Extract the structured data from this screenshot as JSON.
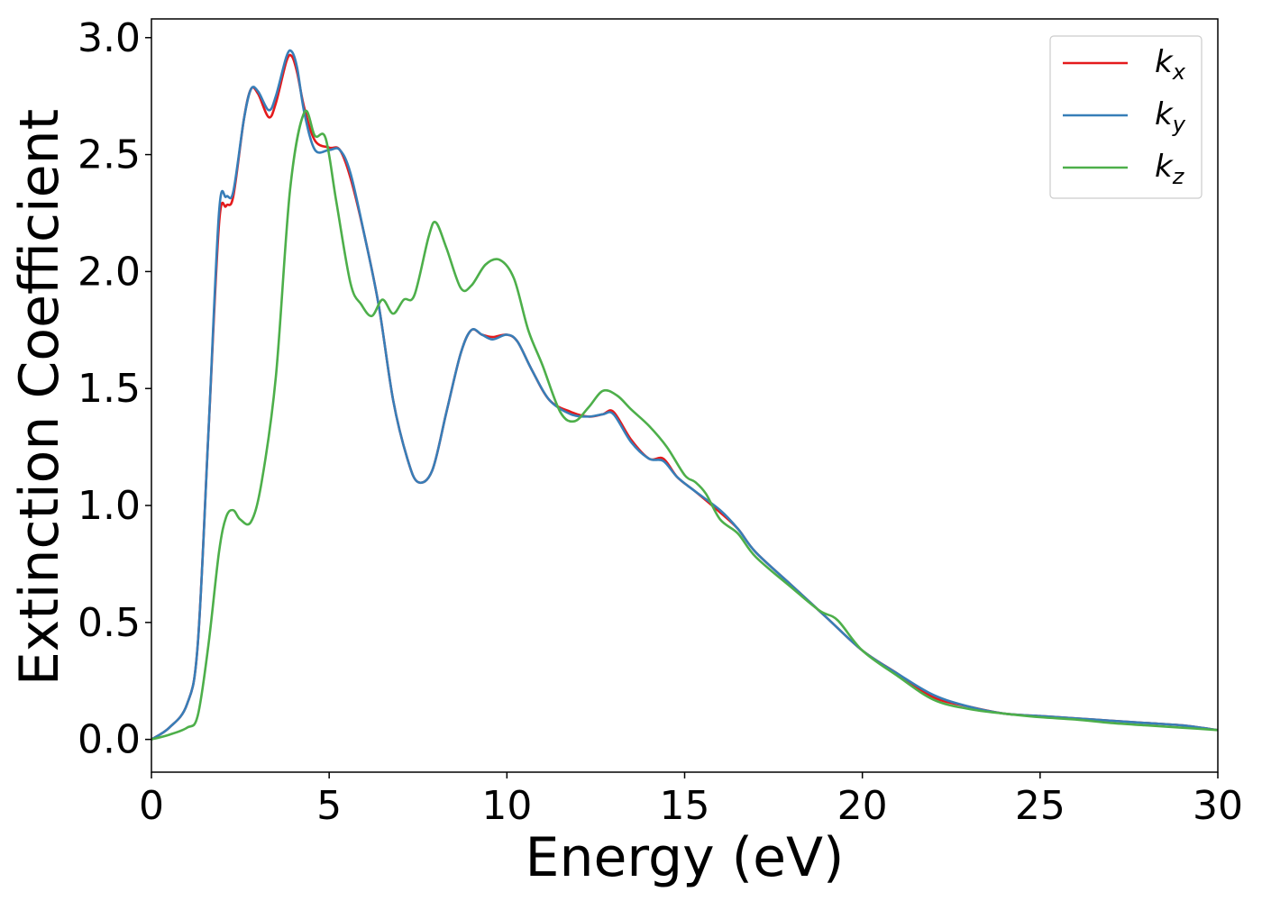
{
  "chart_data": {
    "type": "line",
    "title": "",
    "xlabel": "Energy (eV)",
    "ylabel": "Extinction Coefficient",
    "xlim": [
      0,
      30
    ],
    "ylim": [
      -0.14,
      3.08
    ],
    "xticks": [
      0,
      5,
      10,
      15,
      20,
      25,
      30
    ],
    "xtick_labels": [
      "0",
      "5",
      "10",
      "15",
      "20",
      "25",
      "30"
    ],
    "yticks": [
      0.0,
      0.5,
      1.0,
      1.5,
      2.0,
      2.5,
      3.0
    ],
    "ytick_labels": [
      "0.0",
      "0.5",
      "1.0",
      "1.5",
      "2.0",
      "2.5",
      "3.0"
    ],
    "grid": false,
    "legend_position": "top-right",
    "series": [
      {
        "name": "k_x",
        "label_main": "k",
        "label_sub": "x",
        "color": "#e41a1c",
        "points": [
          [
            0,
            0.0
          ],
          [
            0.5,
            0.05
          ],
          [
            1,
            0.15
          ],
          [
            1.3,
            0.4
          ],
          [
            1.6,
            1.3
          ],
          [
            1.9,
            2.2
          ],
          [
            2.1,
            2.28
          ],
          [
            2.3,
            2.32
          ],
          [
            2.6,
            2.65
          ],
          [
            2.8,
            2.78
          ],
          [
            3.0,
            2.76
          ],
          [
            3.3,
            2.66
          ],
          [
            3.5,
            2.72
          ],
          [
            3.8,
            2.9
          ],
          [
            3.95,
            2.92
          ],
          [
            4.1,
            2.85
          ],
          [
            4.3,
            2.7
          ],
          [
            4.6,
            2.56
          ],
          [
            5,
            2.53
          ],
          [
            5.3,
            2.52
          ],
          [
            5.6,
            2.4
          ],
          [
            6,
            2.15
          ],
          [
            6.4,
            1.85
          ],
          [
            6.8,
            1.45
          ],
          [
            7.2,
            1.2
          ],
          [
            7.5,
            1.1
          ],
          [
            7.9,
            1.15
          ],
          [
            8.3,
            1.4
          ],
          [
            8.7,
            1.65
          ],
          [
            9.0,
            1.75
          ],
          [
            9.3,
            1.73
          ],
          [
            9.6,
            1.72
          ],
          [
            10,
            1.73
          ],
          [
            10.3,
            1.7
          ],
          [
            10.7,
            1.58
          ],
          [
            11.2,
            1.45
          ],
          [
            11.8,
            1.4
          ],
          [
            12.3,
            1.38
          ],
          [
            12.7,
            1.39
          ],
          [
            13.0,
            1.4
          ],
          [
            13.5,
            1.28
          ],
          [
            14,
            1.2
          ],
          [
            14.4,
            1.2
          ],
          [
            14.8,
            1.12
          ],
          [
            15.3,
            1.06
          ],
          [
            16,
            0.97
          ],
          [
            16.5,
            0.9
          ],
          [
            17,
            0.8
          ],
          [
            18,
            0.66
          ],
          [
            19,
            0.52
          ],
          [
            20,
            0.38
          ],
          [
            21,
            0.28
          ],
          [
            22,
            0.18
          ],
          [
            23,
            0.14
          ],
          [
            24,
            0.11
          ],
          [
            25,
            0.1
          ],
          [
            26,
            0.09
          ],
          [
            27,
            0.08
          ],
          [
            28,
            0.07
          ],
          [
            29,
            0.06
          ],
          [
            30,
            0.04
          ]
        ]
      },
      {
        "name": "k_y",
        "label_main": "k",
        "label_sub": "y",
        "color": "#377eb8",
        "points": [
          [
            0,
            0.0
          ],
          [
            0.5,
            0.05
          ],
          [
            1,
            0.15
          ],
          [
            1.3,
            0.4
          ],
          [
            1.6,
            1.3
          ],
          [
            1.9,
            2.25
          ],
          [
            2.1,
            2.32
          ],
          [
            2.3,
            2.34
          ],
          [
            2.6,
            2.65
          ],
          [
            2.8,
            2.78
          ],
          [
            3.0,
            2.77
          ],
          [
            3.3,
            2.69
          ],
          [
            3.5,
            2.75
          ],
          [
            3.8,
            2.92
          ],
          [
            3.95,
            2.94
          ],
          [
            4.1,
            2.87
          ],
          [
            4.3,
            2.68
          ],
          [
            4.6,
            2.52
          ],
          [
            5,
            2.52
          ],
          [
            5.3,
            2.52
          ],
          [
            5.6,
            2.42
          ],
          [
            6,
            2.15
          ],
          [
            6.4,
            1.85
          ],
          [
            6.8,
            1.45
          ],
          [
            7.2,
            1.2
          ],
          [
            7.5,
            1.1
          ],
          [
            7.9,
            1.15
          ],
          [
            8.3,
            1.4
          ],
          [
            8.7,
            1.65
          ],
          [
            9.0,
            1.75
          ],
          [
            9.3,
            1.73
          ],
          [
            9.6,
            1.71
          ],
          [
            10,
            1.73
          ],
          [
            10.3,
            1.7
          ],
          [
            10.7,
            1.58
          ],
          [
            11.2,
            1.45
          ],
          [
            11.8,
            1.39
          ],
          [
            12.3,
            1.38
          ],
          [
            12.7,
            1.39
          ],
          [
            13.0,
            1.39
          ],
          [
            13.5,
            1.27
          ],
          [
            14,
            1.2
          ],
          [
            14.4,
            1.19
          ],
          [
            14.8,
            1.12
          ],
          [
            15.3,
            1.06
          ],
          [
            16,
            0.98
          ],
          [
            16.5,
            0.9
          ],
          [
            17,
            0.8
          ],
          [
            18,
            0.66
          ],
          [
            19,
            0.52
          ],
          [
            20,
            0.38
          ],
          [
            21,
            0.28
          ],
          [
            22,
            0.19
          ],
          [
            23,
            0.14
          ],
          [
            24,
            0.11
          ],
          [
            25,
            0.1
          ],
          [
            26,
            0.09
          ],
          [
            27,
            0.08
          ],
          [
            28,
            0.07
          ],
          [
            29,
            0.06
          ],
          [
            30,
            0.04
          ]
        ]
      },
      {
        "name": "k_z",
        "label_main": "k",
        "label_sub": "z",
        "color": "#4daf4a",
        "points": [
          [
            0,
            0.0
          ],
          [
            0.5,
            0.02
          ],
          [
            1,
            0.05
          ],
          [
            1.3,
            0.1
          ],
          [
            1.6,
            0.4
          ],
          [
            1.9,
            0.8
          ],
          [
            2.1,
            0.95
          ],
          [
            2.3,
            0.98
          ],
          [
            2.5,
            0.94
          ],
          [
            2.8,
            0.93
          ],
          [
            3.1,
            1.1
          ],
          [
            3.5,
            1.55
          ],
          [
            3.9,
            2.35
          ],
          [
            4.3,
            2.68
          ],
          [
            4.6,
            2.58
          ],
          [
            4.9,
            2.57
          ],
          [
            5.2,
            2.3
          ],
          [
            5.6,
            1.95
          ],
          [
            5.9,
            1.86
          ],
          [
            6.2,
            1.81
          ],
          [
            6.5,
            1.88
          ],
          [
            6.8,
            1.82
          ],
          [
            7.1,
            1.88
          ],
          [
            7.4,
            1.9
          ],
          [
            7.8,
            2.15
          ],
          [
            8.0,
            2.21
          ],
          [
            8.3,
            2.1
          ],
          [
            8.7,
            1.93
          ],
          [
            9.0,
            1.94
          ],
          [
            9.4,
            2.03
          ],
          [
            9.8,
            2.05
          ],
          [
            10.2,
            1.97
          ],
          [
            10.6,
            1.75
          ],
          [
            11.0,
            1.6
          ],
          [
            11.5,
            1.4
          ],
          [
            11.9,
            1.36
          ],
          [
            12.3,
            1.42
          ],
          [
            12.7,
            1.49
          ],
          [
            13.1,
            1.47
          ],
          [
            13.5,
            1.41
          ],
          [
            14,
            1.34
          ],
          [
            14.5,
            1.25
          ],
          [
            15,
            1.13
          ],
          [
            15.3,
            1.1
          ],
          [
            15.6,
            1.05
          ],
          [
            16,
            0.94
          ],
          [
            16.5,
            0.88
          ],
          [
            17,
            0.78
          ],
          [
            18,
            0.65
          ],
          [
            18.8,
            0.55
          ],
          [
            19.3,
            0.51
          ],
          [
            20,
            0.38
          ],
          [
            21,
            0.27
          ],
          [
            22,
            0.17
          ],
          [
            23,
            0.13
          ],
          [
            24,
            0.11
          ],
          [
            25,
            0.095
          ],
          [
            26,
            0.085
          ],
          [
            27,
            0.07
          ],
          [
            28,
            0.06
          ],
          [
            29,
            0.05
          ],
          [
            30,
            0.04
          ]
        ]
      }
    ]
  }
}
